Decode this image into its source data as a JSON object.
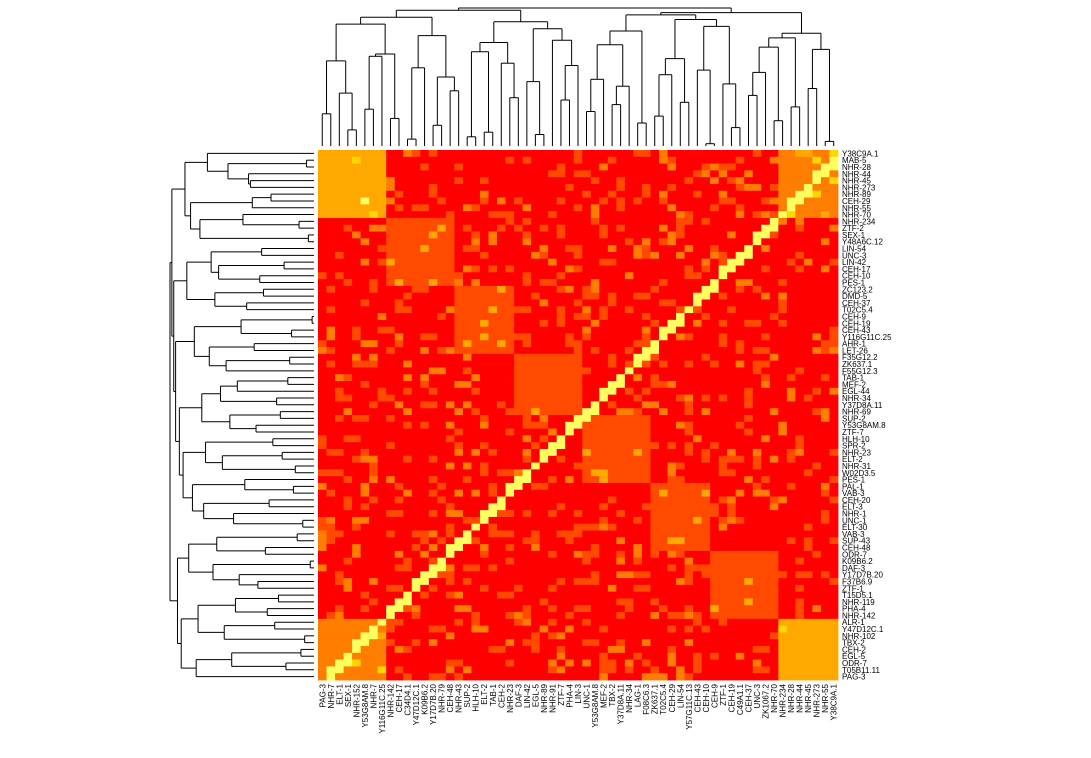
{
  "chart_data": {
    "type": "heatmap",
    "title": "",
    "xlabel": "",
    "ylabel": "",
    "dendrograms": [
      "top",
      "left"
    ],
    "colormap": [
      "#ff0000",
      "#ff4a00",
      "#ff7d00",
      "#ffa900",
      "#ffd700",
      "#ffff60"
    ],
    "row_labels": [
      "Y38C9A.1",
      "MAB-5",
      "NHR-28",
      "NHR-44",
      "NHR-45",
      "NHR-273",
      "NHR-89",
      "CEH-29",
      "NHR-55",
      "NHR-70",
      "NHR-234",
      "ZTF-2",
      "SEX-1",
      "Y48A6C.12",
      "LIN-54",
      "UNC-3",
      "LIN-42",
      "CEH-17",
      "CEH-10",
      "PES-1",
      "ZC123.2",
      "DMD-5",
      "CEH-37",
      "T02C5.4",
      "CEH-9",
      "CEH-19",
      "CEH-43",
      "Y116G11C.25",
      "AHR-1",
      "LET-26",
      "F35G12.2",
      "ZK637.1",
      "F55G12.3",
      "TAB-1",
      "MEF-2",
      "EGL-44",
      "NHR-34",
      "Y37D8A.11",
      "NHR-69",
      "SUP-2",
      "Y53G8AM.8",
      "ZTF-7",
      "HLH-10",
      "SPR-2",
      "NHR-23",
      "ELT-2",
      "NHR-31",
      "W02D3.5",
      "PES-1",
      "PAL-1",
      "VAB-3",
      "CEH-20",
      "ELT-3",
      "NHR-1",
      "UNC-1",
      "ELT-30",
      "VAB-3",
      "SUP-43",
      "CEH-48",
      "ODR-7",
      "K09B6.2",
      "DAF-3",
      "Y17D7B.20",
      "F37B6.9",
      "ZTF-1",
      "T15D5.1",
      "NHR-119",
      "PHA-4",
      "NHR-142",
      "ALR-1",
      "Y47D12C.1",
      "NHR-102",
      "TBX-2",
      "CEH-2",
      "EGL-5",
      "ODR-7",
      "T05B11.11",
      "PAG-3"
    ],
    "col_labels": [
      "PAG-3",
      "NHR-7",
      "ELT-1",
      "SEX-1",
      "NHR-152",
      "Y53G8AM.8",
      "NHR-7",
      "Y116G11C.25",
      "NHR-142",
      "CEH-17",
      "C34D4.1",
      "Y47D12C.1",
      "K09B6.2",
      "Y17D7B.20",
      "NHR-79",
      "CEH-48",
      "NHR-43",
      "SUP-2",
      "HLH-10",
      "ELT-2",
      "TAB-1",
      "CEH-2",
      "NHR-23",
      "DAF-3",
      "LIN-42",
      "EGL-5",
      "NHR-89",
      "NHR-91",
      "ZTF-7",
      "PHA-4",
      "LIN-3",
      "UNC-1",
      "Y53G8AM.8",
      "MEF-2",
      "TBX-2",
      "Y37D8A.11",
      "NHR-34",
      "LAG-1",
      "F08C6.3",
      "ZK637.1",
      "T02C5.4",
      "CEH-29",
      "LIN-54",
      "Y57G11C.13",
      "CEH-43",
      "CEH-10",
      "CEH-9",
      "ZTF-1",
      "CEH-19",
      "C49A1.1",
      "CEH-37",
      "UNC-3",
      "ZK1067.2",
      "NHR-70",
      "NHR-234",
      "NHR-28",
      "NHR-44",
      "NHR-45",
      "NHR-273",
      "NHR-55",
      "Y38C9A.1"
    ],
    "values": null,
    "note_values": "matrix intentionally null — generated in script"
  }
}
